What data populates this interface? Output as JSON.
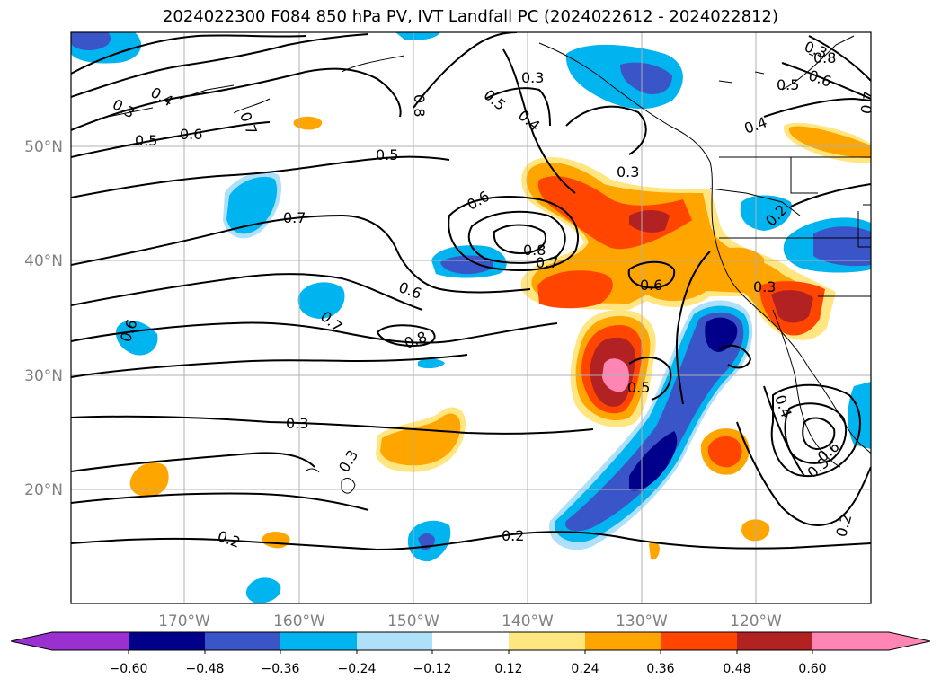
{
  "title": "2024022300 F084 850 hPa PV, IVT Landfall PC (2024022612 - 2024022812)",
  "lat_labels": [
    "50°N",
    "40°N",
    "30°N",
    "20°N"
  ],
  "lon_labels": [
    "170°W",
    "160°W",
    "150°W",
    "140°W",
    "130°W",
    "120°W"
  ],
  "contour_labels": [
    "0.3",
    "0.4",
    "0.5",
    "0.6",
    "0.7",
    "0.8",
    "0.5",
    "0.4",
    "0.3",
    "0.5",
    "0.6",
    "0.3",
    "0.4",
    "0.5",
    "0.3",
    "0.7",
    "0.6",
    "0.8",
    "0.7",
    "0.6",
    "0.8",
    "0.7",
    "0.6",
    "0.3",
    "0.6",
    "0.7",
    "0.8",
    "0.5",
    "0.3",
    "0.3",
    "0.2",
    "0.2",
    "0.4",
    "0.6",
    "0.5",
    "0.2",
    "0.2"
  ],
  "colorbar": {
    "ticks": [
      "−0.60",
      "−0.48",
      "−0.36",
      "−0.24",
      "−0.12",
      "0.12",
      "0.24",
      "0.36",
      "0.48",
      "0.60"
    ],
    "colors": [
      "#9b30d0",
      "#00008b",
      "#3a55c8",
      "#00b4f0",
      "#aee0fa",
      "#ffffff",
      "#ffe680",
      "#ffa500",
      "#ff4500",
      "#b22222",
      "#ff86b4",
      "#ff86b4"
    ]
  },
  "colors": {
    "c_neg1": "#aee0fa",
    "c_neg2": "#00b4f0",
    "c_neg3": "#3a55c8",
    "c_neg4": "#00008b",
    "c_pos1": "#ffe680",
    "c_pos2": "#ffa500",
    "c_pos3": "#ff4500",
    "c_pos4": "#b22222",
    "c_pos5": "#ff86b4",
    "grid": "#b0b0b0"
  }
}
